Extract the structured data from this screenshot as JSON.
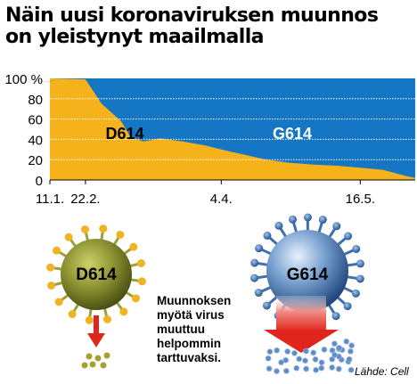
{
  "title_lines": [
    "Näin uusi koronaviruksen muunnos",
    "on yleistynyt maailmalla"
  ],
  "caption_lines": [
    "Muunnoksen",
    "myötä virus",
    "muuttuu",
    "helpommin",
    "tarttuvaksi."
  ],
  "source": "Lähde: Cell",
  "virus_labels": {
    "left": "D614",
    "right": "G614"
  },
  "colors": {
    "d614": "#f5b21a",
    "g614": "#1576c3",
    "virus_left": "#7f8723",
    "virus_right": "#2f5f9a",
    "arrow": "#e0261c",
    "grid": "#ffffff"
  },
  "chart_data": {
    "type": "area",
    "stacked": true,
    "normalized": true,
    "x_ticks": [
      "11.1.",
      "22.2.",
      "4.4.",
      "16.5."
    ],
    "y_ticks": [
      "0",
      "20",
      "40",
      "60",
      "80",
      "100 %"
    ],
    "ylim": [
      0,
      100
    ],
    "series": [
      {
        "name": "D614",
        "color_key": "d614",
        "points": [
          [
            "11.1.",
            100
          ],
          [
            "22.1.",
            99
          ],
          [
            "1.2.",
            96
          ],
          [
            "11.2.",
            97
          ],
          [
            "17.2.",
            99
          ],
          [
            "22.2.",
            99
          ],
          [
            "27.2.",
            75
          ],
          [
            "2.3.",
            58
          ],
          [
            "5.3.",
            42
          ],
          [
            "9.3.",
            38
          ],
          [
            "14.3.",
            41
          ],
          [
            "21.3.",
            38
          ],
          [
            "28.3.",
            34
          ],
          [
            "4.4.",
            30
          ],
          [
            "11.4.",
            25
          ],
          [
            "18.4.",
            20
          ],
          [
            "25.4.",
            17
          ],
          [
            "2.5.",
            15
          ],
          [
            "9.5.",
            14
          ],
          [
            "16.5.",
            12
          ],
          [
            "23.5.",
            10
          ],
          [
            "30.5.",
            4
          ],
          [
            "3.6.",
            2
          ]
        ]
      },
      {
        "name": "G614",
        "color_key": "g614",
        "values_note_complement": true
      }
    ]
  }
}
